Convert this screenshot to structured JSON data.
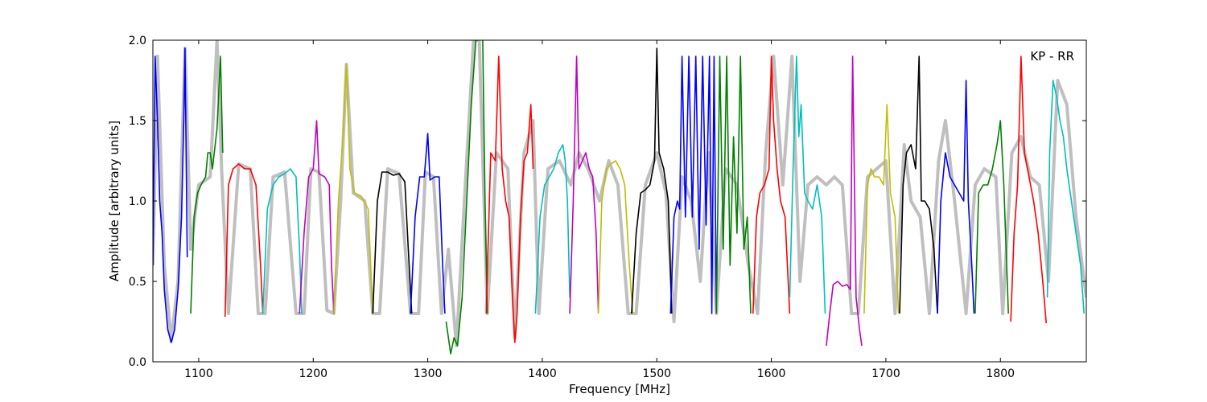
{
  "chart_data": {
    "type": "line",
    "panel_label": "KP - RR",
    "xlabel": "Frequency [MHz]",
    "ylabel": "Amplitude [arbitrary units]",
    "xlim": [
      1060,
      1875
    ],
    "ylim": [
      0.0,
      2.0
    ],
    "x_ticks": [
      1100,
      1200,
      1300,
      1400,
      1500,
      1600,
      1700,
      1800
    ],
    "y_ticks": [
      0.0,
      0.5,
      1.0,
      1.5,
      2.0
    ],
    "y_tick_labels": [
      "0.0",
      "0.5",
      "1.0",
      "1.5",
      "2.0"
    ],
    "background_series": {
      "color": "#bfbfbf",
      "x": [
        1060,
        1064,
        1070,
        1076,
        1082,
        1088,
        1093,
        1100,
        1110,
        1116,
        1120,
        1126,
        1135,
        1145,
        1152,
        1158,
        1165,
        1175,
        1185,
        1192,
        1198,
        1205,
        1212,
        1218,
        1224,
        1229,
        1235,
        1245,
        1252,
        1258,
        1265,
        1275,
        1285,
        1292,
        1298,
        1305,
        1312,
        1318,
        1325,
        1332,
        1340,
        1345,
        1352,
        1360,
        1370,
        1376,
        1384,
        1392,
        1397,
        1405,
        1415,
        1425,
        1432,
        1440,
        1450,
        1458,
        1466,
        1475,
        1482,
        1490,
        1500,
        1508,
        1515,
        1522,
        1530,
        1538,
        1545,
        1552,
        1560,
        1570,
        1580,
        1588,
        1595,
        1602,
        1610,
        1618,
        1625,
        1632,
        1640,
        1648,
        1655,
        1662,
        1670,
        1676,
        1684,
        1692,
        1700,
        1708,
        1716,
        1722,
        1730,
        1738,
        1746,
        1752,
        1760,
        1770,
        1778,
        1786,
        1796,
        1802,
        1810,
        1818,
        1826,
        1834,
        1842,
        1850,
        1858,
        1866,
        1875
      ],
      "y": [
        0.6,
        1.9,
        0.6,
        0.13,
        0.5,
        1.95,
        0.7,
        1.1,
        1.15,
        2.0,
        1.2,
        0.3,
        1.23,
        1.2,
        0.3,
        0.3,
        1.15,
        1.18,
        0.3,
        0.3,
        1.2,
        1.18,
        0.32,
        0.3,
        1.0,
        1.85,
        1.05,
        1.0,
        0.3,
        0.3,
        1.2,
        1.17,
        0.3,
        0.3,
        1.18,
        1.15,
        0.3,
        0.7,
        0.1,
        1.0,
        2.0,
        2.0,
        0.3,
        1.3,
        1.2,
        0.15,
        1.3,
        1.5,
        0.3,
        1.2,
        1.25,
        1.1,
        1.3,
        1.2,
        1.0,
        1.25,
        1.1,
        0.3,
        0.3,
        1.1,
        1.3,
        1.05,
        0.25,
        1.15,
        1.0,
        0.5,
        1.3,
        0.3,
        1.2,
        1.1,
        0.6,
        0.3,
        1.3,
        1.9,
        1.1,
        1.9,
        0.5,
        1.1,
        1.15,
        1.1,
        1.15,
        1.1,
        0.3,
        0.3,
        1.15,
        1.2,
        1.25,
        0.3,
        1.35,
        1.0,
        0.9,
        0.3,
        1.25,
        1.5,
        1.0,
        0.3,
        1.1,
        1.2,
        1.15,
        0.3,
        1.3,
        1.4,
        1.15,
        1.1,
        0.5,
        1.75,
        1.6,
        0.9,
        0.4
      ]
    },
    "series": [
      {
        "color": "#0000ff",
        "x": [
          1060,
          1062,
          1064,
          1066,
          1068,
          1070,
          1073,
          1076,
          1079,
          1082,
          1085,
          1087,
          1088,
          1090
        ],
        "y": [
          0.6,
          1.9,
          1.5,
          1.0,
          0.8,
          0.45,
          0.2,
          0.12,
          0.2,
          0.45,
          0.9,
          1.5,
          1.95,
          0.65
        ]
      },
      {
        "color": "#008000",
        "x": [
          1093,
          1096,
          1099,
          1102,
          1106,
          1108,
          1110,
          1112,
          1116,
          1119,
          1121
        ],
        "y": [
          0.3,
          0.9,
          1.05,
          1.1,
          1.15,
          1.3,
          1.3,
          1.2,
          1.45,
          1.9,
          1.3
        ]
      },
      {
        "color": "#ff0000",
        "x": [
          1123,
          1126,
          1130,
          1135,
          1140,
          1145,
          1150,
          1154,
          1156
        ],
        "y": [
          0.28,
          1.1,
          1.2,
          1.23,
          1.2,
          1.2,
          1.1,
          0.6,
          0.3
        ]
      },
      {
        "color": "#00bfbf",
        "x": [
          1156,
          1160,
          1165,
          1170,
          1175,
          1180,
          1185,
          1188,
          1190
        ],
        "y": [
          0.3,
          0.95,
          1.1,
          1.15,
          1.17,
          1.2,
          1.15,
          0.7,
          0.3
        ]
      },
      {
        "color": "#bf00bf",
        "x": [
          1188,
          1192,
          1196,
          1200,
          1203,
          1205,
          1210,
          1214,
          1216,
          1218
        ],
        "y": [
          0.3,
          0.8,
          1.15,
          1.2,
          1.5,
          1.17,
          1.15,
          1.1,
          0.6,
          0.3
        ]
      },
      {
        "color": "#bfbf00",
        "x": [
          1218,
          1222,
          1226,
          1229,
          1232,
          1236,
          1242,
          1248,
          1252
        ],
        "y": [
          0.3,
          1.0,
          1.4,
          1.85,
          1.2,
          1.05,
          1.03,
          0.95,
          0.3
        ]
      },
      {
        "color": "#000000",
        "x": [
          1252,
          1256,
          1260,
          1265,
          1270,
          1275,
          1280,
          1283,
          1286
        ],
        "y": [
          0.3,
          1.0,
          1.18,
          1.18,
          1.16,
          1.17,
          1.12,
          0.7,
          0.3
        ]
      },
      {
        "color": "#0000ff",
        "x": [
          1285,
          1289,
          1293,
          1297,
          1300,
          1302,
          1306,
          1310,
          1313,
          1315
        ],
        "y": [
          0.3,
          0.9,
          1.15,
          1.15,
          1.42,
          1.13,
          1.15,
          1.15,
          0.6,
          0.3
        ]
      },
      {
        "color": "#008000",
        "x": [
          1316,
          1320,
          1323,
          1326,
          1330,
          1334,
          1338,
          1342,
          1344
        ],
        "y": [
          0.25,
          0.05,
          0.15,
          0.1,
          0.4,
          1.0,
          1.6,
          2.0,
          2.0
        ]
      },
      {
        "color": "#008000",
        "x": [
          1348,
          1350,
          1352
        ],
        "y": [
          2.0,
          1.0,
          0.3
        ]
      },
      {
        "color": "#ff0000",
        "x": [
          1351,
          1355,
          1359,
          1362,
          1365,
          1368,
          1371,
          1374,
          1376,
          1378,
          1381,
          1384,
          1387,
          1390,
          1392
        ],
        "y": [
          0.3,
          1.3,
          1.25,
          1.9,
          1.2,
          1.0,
          0.9,
          0.4,
          0.12,
          0.3,
          0.9,
          1.25,
          1.3,
          1.6,
          1.2
        ]
      },
      {
        "color": "#00bfbf",
        "x": [
          1394,
          1398,
          1402,
          1406,
          1410,
          1414,
          1418,
          1420,
          1422,
          1424
        ],
        "y": [
          0.3,
          0.9,
          1.1,
          1.15,
          1.2,
          1.3,
          1.35,
          1.25,
          1.0,
          0.4
        ]
      },
      {
        "color": "#bf00bf",
        "x": [
          1424,
          1427,
          1430,
          1432,
          1435,
          1438,
          1441,
          1444,
          1447,
          1449
        ],
        "y": [
          0.3,
          1.0,
          1.9,
          1.2,
          1.25,
          1.3,
          1.2,
          1.15,
          0.8,
          0.3
        ]
      },
      {
        "color": "#bfbf00",
        "x": [
          1449,
          1452,
          1456,
          1460,
          1464,
          1468,
          1472,
          1476,
          1479
        ],
        "y": [
          0.3,
          1.0,
          1.2,
          1.23,
          1.25,
          1.2,
          1.1,
          0.6,
          0.3
        ]
      },
      {
        "color": "#000000",
        "x": [
          1478,
          1482,
          1486,
          1490,
          1494,
          1498,
          1500,
          1502,
          1506,
          1510,
          1513
        ],
        "y": [
          0.3,
          0.8,
          1.05,
          1.07,
          1.1,
          1.25,
          1.95,
          1.3,
          1.2,
          1.0,
          0.3
        ]
      },
      {
        "color": "#0000ff",
        "x": [
          1512,
          1515,
          1518,
          1520,
          1522,
          1525,
          1528,
          1531,
          1534,
          1537,
          1540,
          1543,
          1546,
          1548,
          1550,
          1552
        ],
        "y": [
          0.3,
          0.9,
          1.0,
          0.95,
          1.9,
          0.9,
          1.9,
          0.9,
          1.9,
          0.7,
          1.9,
          0.85,
          1.9,
          0.3,
          1.9,
          0.3
        ]
      },
      {
        "color": "#008000",
        "x": [
          1552,
          1555,
          1558,
          1561,
          1564,
          1567,
          1570,
          1573,
          1576,
          1579,
          1582
        ],
        "y": [
          0.3,
          1.9,
          0.7,
          1.9,
          0.6,
          1.4,
          0.8,
          1.9,
          0.7,
          0.9,
          0.3
        ]
      },
      {
        "color": "#ff0000",
        "x": [
          1584,
          1587,
          1590,
          1594,
          1598,
          1600,
          1602,
          1605,
          1608,
          1612,
          1616
        ],
        "y": [
          0.3,
          0.9,
          1.05,
          1.1,
          1.2,
          1.9,
          1.5,
          1.2,
          1.0,
          0.9,
          0.3
        ]
      },
      {
        "color": "#00bfbf",
        "x": [
          1616,
          1619,
          1622,
          1624,
          1626,
          1629,
          1632,
          1636,
          1640,
          1644,
          1647
        ],
        "y": [
          0.4,
          1.2,
          1.9,
          1.4,
          1.6,
          1.05,
          1.0,
          0.95,
          1.1,
          0.9,
          0.3
        ]
      },
      {
        "color": "#bf00bf",
        "x": [
          1648,
          1651,
          1654,
          1658,
          1662,
          1666,
          1669,
          1671,
          1674,
          1677,
          1679
        ],
        "y": [
          0.1,
          0.3,
          0.48,
          0.5,
          0.47,
          0.48,
          0.45,
          1.9,
          0.4,
          0.2,
          0.1
        ]
      },
      {
        "color": "#bfbf00",
        "x": [
          1681,
          1684,
          1687,
          1690,
          1694,
          1698,
          1701,
          1704,
          1708,
          1711
        ],
        "y": [
          0.3,
          1.1,
          1.2,
          1.15,
          1.15,
          1.1,
          1.6,
          1.05,
          0.9,
          0.3
        ]
      },
      {
        "color": "#000000",
        "x": [
          1712,
          1715,
          1718,
          1722,
          1726,
          1729,
          1731,
          1734,
          1738,
          1742,
          1745
        ],
        "y": [
          0.3,
          1.1,
          1.3,
          1.35,
          1.2,
          1.9,
          1.0,
          1.0,
          0.95,
          0.7,
          0.3
        ]
      },
      {
        "color": "#0000ff",
        "x": [
          1745,
          1748,
          1752,
          1756,
          1760,
          1764,
          1768,
          1770,
          1772,
          1775,
          1777
        ],
        "y": [
          0.3,
          1.0,
          1.3,
          1.15,
          1.1,
          1.05,
          1.0,
          1.75,
          1.0,
          0.6,
          0.3
        ]
      },
      {
        "color": "#008000",
        "x": [
          1778,
          1781,
          1785,
          1789,
          1793,
          1797,
          1800,
          1803,
          1807
        ],
        "y": [
          0.3,
          1.05,
          1.1,
          1.1,
          1.2,
          1.35,
          1.5,
          1.1,
          0.3
        ]
      },
      {
        "color": "#ff0000",
        "x": [
          1809,
          1812,
          1815,
          1818,
          1821,
          1825,
          1829,
          1833,
          1837,
          1840
        ],
        "y": [
          0.25,
          0.8,
          1.1,
          1.9,
          1.3,
          1.15,
          1.0,
          0.8,
          0.5,
          0.24
        ]
      },
      {
        "color": "#00bfbf",
        "x": [
          1841,
          1843,
          1846,
          1849,
          1852,
          1855,
          1858,
          1862,
          1866,
          1870,
          1873
        ],
        "y": [
          0.4,
          1.3,
          1.75,
          1.65,
          1.5,
          1.4,
          1.2,
          1.0,
          0.8,
          0.6,
          0.3
        ]
      }
    ]
  }
}
